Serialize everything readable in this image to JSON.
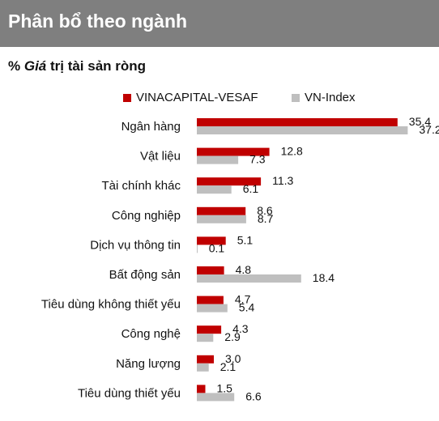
{
  "header": {
    "title": "Phân bổ theo ngành"
  },
  "subtitle": {
    "pct": "% ",
    "em": "Giá",
    "rest": " trị tài sản ròng"
  },
  "colors": {
    "series1": "#c00000",
    "series2": "#bfbfbf",
    "header_bg": "#7f7f7f"
  },
  "chart_data": {
    "type": "bar",
    "orientation": "horizontal",
    "categories": [
      "Ngân hàng",
      "Vật liệu",
      "Tài chính khác",
      "Công nghiệp",
      "Dịch vụ thông tin",
      "Bất động sản",
      "Tiêu dùng không thiết yếu",
      "Công nghệ",
      "Năng lượng",
      "Tiêu dùng thiết yếu"
    ],
    "series": [
      {
        "name": "VINACAPITAL-VESAF",
        "values": [
          35.4,
          12.8,
          11.3,
          8.6,
          5.1,
          4.8,
          4.7,
          4.3,
          3.0,
          1.5
        ],
        "labels": [
          "35.4",
          "12.8",
          "11.3",
          "8.6",
          "5.1",
          "4.8",
          "4.7",
          "4.3",
          "3.0",
          "1.5"
        ],
        "color": "#c00000"
      },
      {
        "name": "VN-Index",
        "values": [
          37.2,
          7.3,
          6.1,
          8.7,
          0.1,
          18.4,
          5.4,
          2.9,
          2.1,
          6.6
        ],
        "labels": [
          "37.2",
          "7.3",
          "6.1",
          "8.7",
          "0.1",
          "18.4",
          "5.4",
          "2.9",
          "2.1",
          "6.6"
        ],
        "color": "#bfbfbf"
      }
    ],
    "title": "",
    "xlabel": "",
    "ylabel": "",
    "grid": false,
    "legend": "top"
  }
}
